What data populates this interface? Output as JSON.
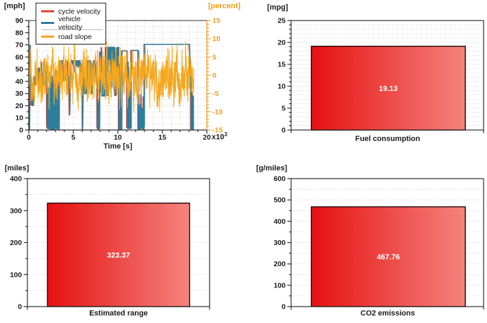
{
  "window": {
    "background": "#ffffff"
  },
  "colors": {
    "axis": "#2b2b2b",
    "text": "#1a1a1a",
    "grid_dots": "#c6c6c6",
    "right_axis_orange": "#f29c1a",
    "cycle_velocity_red": "#e8423b",
    "vehicle_velocity_teal": "#2e7d9a",
    "road_slope_orange": "#f5a71e",
    "bar_gradient_left": "#e51111",
    "bar_gradient_right": "#f5837d",
    "bar_border": "#190404",
    "bar_value_text": "#ffffff"
  },
  "chart_data": [
    {
      "id": "velocity",
      "type": "line",
      "xlabel": "Time [s]",
      "x_exponent": {
        "base": "x10",
        "exp": "3"
      },
      "x_axis": {
        "min": 0,
        "max": 20,
        "major": 5,
        "minor": 1
      },
      "y_left": {
        "label": "[mph]",
        "min": 0,
        "max": 90,
        "major": 10,
        "minor": 5
      },
      "y_right": {
        "label": "[percent]",
        "min": -15,
        "max": 15,
        "major": 5,
        "minor": 1,
        "color": "#f29c1a"
      },
      "legend": [
        {
          "label": "cycle velocity",
          "color": "#e8423b",
          "axis": "left"
        },
        {
          "label": "vehicle velocity",
          "color": "#2e7d9a",
          "axis": "left"
        },
        {
          "label": "road slope",
          "color": "#f5a71e",
          "axis": "right"
        }
      ],
      "series": {
        "vehicle_velocity": {
          "axis": "left",
          "color": "#2e7d9a",
          "units": "mph",
          "segments": [
            {
              "from": 0.0,
              "to": 0.1,
              "shape": "flat",
              "v": 0
            },
            {
              "from": 0.1,
              "to": 0.18,
              "shape": "ramp",
              "v0": 0,
              "v1": 70
            },
            {
              "from": 0.18,
              "to": 0.3,
              "shape": "ramp",
              "v0": 70,
              "v1": 26
            },
            {
              "from": 0.3,
              "to": 0.55,
              "shape": "noisy",
              "lo": 20,
              "hi": 34
            },
            {
              "from": 0.55,
              "to": 2.05,
              "shape": "noisy",
              "lo": 37,
              "hi": 56
            },
            {
              "from": 2.05,
              "to": 3.45,
              "shape": "stops",
              "lo": 0,
              "hi": 50
            },
            {
              "from": 3.45,
              "to": 4.5,
              "shape": "noisy",
              "lo": 41,
              "hi": 57
            },
            {
              "from": 4.5,
              "to": 4.6,
              "shape": "ramp",
              "v0": 54,
              "v1": 12
            },
            {
              "from": 4.6,
              "to": 4.75,
              "shape": "ramp",
              "v0": 12,
              "v1": 53
            },
            {
              "from": 4.75,
              "to": 6.0,
              "shape": "noisy",
              "lo": 48,
              "hi": 57
            },
            {
              "from": 6.0,
              "to": 6.06,
              "shape": "ramp",
              "v0": 55,
              "v1": 0
            },
            {
              "from": 6.06,
              "to": 6.15,
              "shape": "ramp",
              "v0": 0,
              "v1": 50
            },
            {
              "from": 6.15,
              "to": 7.7,
              "shape": "noisy",
              "lo": 30,
              "hi": 57
            },
            {
              "from": 7.7,
              "to": 7.98,
              "shape": "stops",
              "lo": 0,
              "hi": 28
            },
            {
              "from": 7.98,
              "to": 10.12,
              "shape": "noisy",
              "lo": 28,
              "hi": 68
            },
            {
              "from": 10.12,
              "to": 10.48,
              "shape": "stops",
              "lo": 0,
              "hi": 55
            },
            {
              "from": 10.48,
              "to": 11.05,
              "shape": "flat",
              "v": 65
            },
            {
              "from": 11.05,
              "to": 11.52,
              "shape": "stops",
              "lo": 0,
              "hi": 58
            },
            {
              "from": 11.52,
              "to": 12.3,
              "shape": "flat",
              "v": 65.5
            },
            {
              "from": 12.3,
              "to": 13.0,
              "shape": "stops",
              "lo": 0,
              "hi": 30
            },
            {
              "from": 13.0,
              "to": 18.05,
              "shape": "flat",
              "v": 70.5
            },
            {
              "from": 18.05,
              "to": 18.22,
              "shape": "ramp",
              "v0": 70.5,
              "v1": 36
            },
            {
              "from": 18.22,
              "to": 18.5,
              "shape": "stops",
              "lo": 0,
              "hi": 34
            },
            {
              "from": 18.5,
              "to": 18.55,
              "shape": "flat",
              "v": 0
            }
          ],
          "sample_step": 0.012
        },
        "cycle_velocity": {
          "axis": "left",
          "color": "#e8423b",
          "units": "mph",
          "same_as": "vehicle_velocity",
          "lead_ks": 0.06
        },
        "road_slope": {
          "axis": "right",
          "color": "#f5a71e",
          "units": "percent",
          "shape": "noise",
          "from": 0,
          "to": 18.55,
          "sample_step": 0.01,
          "seed": 12,
          "persistence": 0.72,
          "jitter": 4.2,
          "clamp": [
            -11,
            9.3
          ],
          "mean": 0
        }
      }
    },
    {
      "id": "fuel",
      "type": "bar",
      "unit": "[mpg]",
      "title": "Fuel consumption",
      "value": 19.13,
      "value_label": "19.13",
      "y_axis": {
        "min": 0,
        "max": 25,
        "major": 5,
        "minor": 1,
        "grid_step": 1
      }
    },
    {
      "id": "range",
      "type": "bar",
      "unit": "[miles]",
      "title": "Estimated range",
      "value": 323.37,
      "value_label": "323.37",
      "y_axis": {
        "min": 0,
        "max": 400,
        "major": 100,
        "minor": 50,
        "grid_step": 50
      }
    },
    {
      "id": "co2",
      "type": "bar",
      "unit": "[g/miles]",
      "title": "CO2 emissions",
      "value": 467.76,
      "value_label": "467.76",
      "y_axis": {
        "min": 0,
        "max": 600,
        "major": 100,
        "minor": 50,
        "grid_step": 50
      }
    }
  ]
}
